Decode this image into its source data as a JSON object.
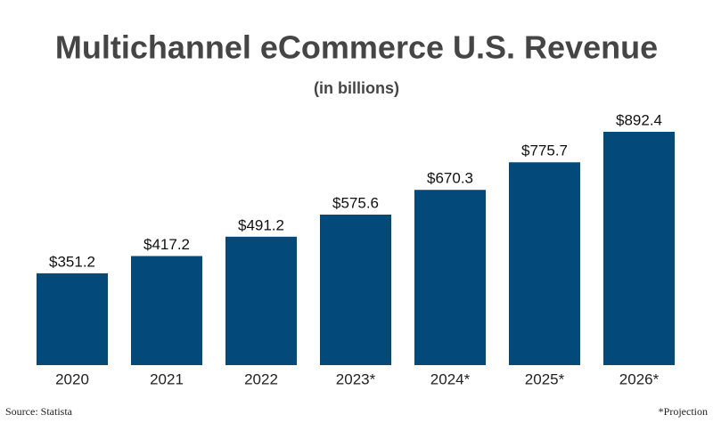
{
  "chart_data": {
    "type": "bar",
    "title": "Multichannel eCommerce U.S. Revenue",
    "subtitle": "(in billions)",
    "categories": [
      "2020",
      "2021",
      "2022",
      "2023*",
      "2024*",
      "2025*",
      "2026*"
    ],
    "values": [
      351.2,
      417.2,
      491.2,
      575.6,
      670.3,
      775.7,
      892.4
    ],
    "value_labels": [
      "$351.2",
      "$417.2",
      "$491.2",
      "$575.6",
      "$670.3",
      "$775.7",
      "$892.4"
    ],
    "color": "#03497a",
    "source": "Source: Statista",
    "note": "*Projection"
  }
}
